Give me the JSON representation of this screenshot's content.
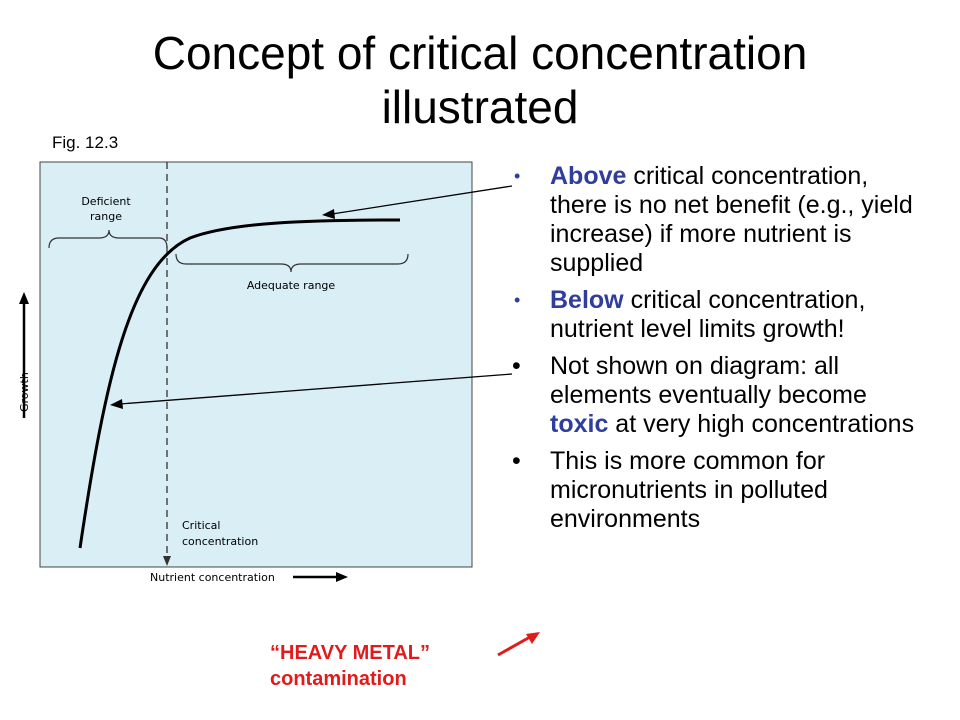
{
  "slide": {
    "title_line1": "Concept of critical concentration",
    "title_line2": "illustrated",
    "fig_label": "Fig. 12.3"
  },
  "diagram": {
    "deficient_line1": "Deficient",
    "deficient_line2": "range",
    "adequate_label": "Adequate range",
    "critical_line1": "Critical",
    "critical_line2": "concentration",
    "x_axis_label": "Nutrient concentration",
    "y_axis_label": "Growth",
    "background_color": "#d9eef5"
  },
  "bullets": [
    {
      "keyword": "Above",
      "text": " critical concentration, there is no net benefit (e.g., yield increase) if more nutrient is supplied"
    },
    {
      "keyword": "Below",
      "text": " critical concentration, nutrient level limits growth!"
    },
    {
      "pre": "Not shown on diagram: all elements eventually become ",
      "keyword": "toxic",
      "post": " at very high concentrations"
    },
    {
      "text": "This is more common for micronutrients in polluted environments"
    }
  ],
  "callout": {
    "line1": "“HEAVY METAL”",
    "line2": "contamination",
    "color": "#e01b1b"
  },
  "colors": {
    "keyword": "#2f3e9e",
    "callout": "#e01b1b"
  }
}
